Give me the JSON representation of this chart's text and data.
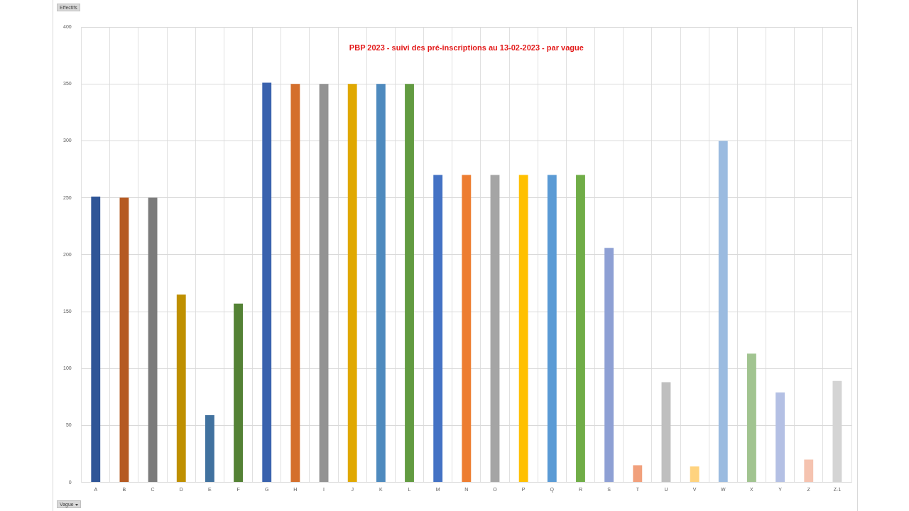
{
  "chart_data": {
    "type": "bar",
    "title": "PBP 2023 - suivi des pré-inscriptions au 13-02-2023 - par vague",
    "ylabel": "Effectifs",
    "xlabel": "Vague",
    "categories": [
      "A",
      "B",
      "C",
      "D",
      "E",
      "F",
      "G",
      "H",
      "I",
      "J",
      "K",
      "L",
      "M",
      "N",
      "O",
      "P",
      "Q",
      "R",
      "S",
      "T",
      "U",
      "V",
      "W",
      "X",
      "Y",
      "Z",
      "Z-1"
    ],
    "values": [
      251,
      250,
      250,
      165,
      59,
      157,
      351,
      350,
      350,
      350,
      350,
      350,
      270,
      270,
      270,
      270,
      270,
      270,
      206,
      15,
      88,
      14,
      300,
      113,
      79,
      20,
      89
    ],
    "colors": [
      "#2f5597",
      "#b55a22",
      "#7b7b7b",
      "#bf9000",
      "#41729f",
      "#548235",
      "#3a62ad",
      "#d46f2c",
      "#939393",
      "#e0a800",
      "#4e8abe",
      "#629b41",
      "#4472c4",
      "#ed7d31",
      "#a5a5a5",
      "#ffc000",
      "#5b9bd5",
      "#70ad47",
      "#8ea0d4",
      "#f1a07c",
      "#bfbfbf",
      "#ffd37f",
      "#9bbbe0",
      "#a1c490",
      "#b4c0e4",
      "#f5c3b0",
      "#d4d4d4"
    ],
    "ylim": [
      0,
      400
    ],
    "yticks": [
      0,
      50,
      100,
      150,
      200,
      250,
      300,
      350,
      400
    ],
    "grid": true,
    "legend": false
  }
}
